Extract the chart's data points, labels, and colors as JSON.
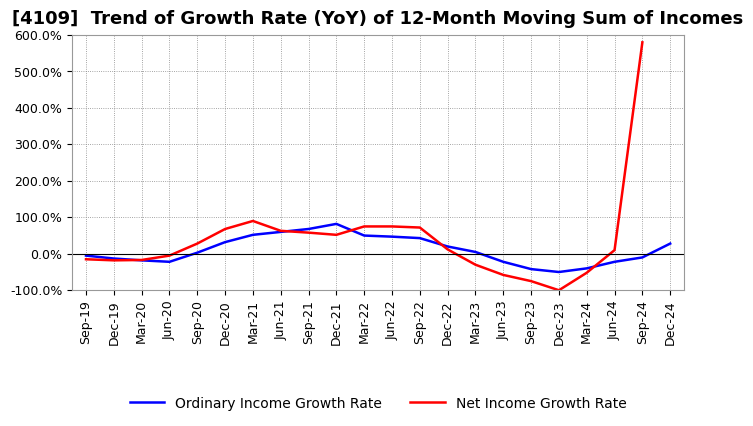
{
  "title": "[4109]  Trend of Growth Rate (YoY) of 12-Month Moving Sum of Incomes",
  "x_labels": [
    "Sep-19",
    "Dec-19",
    "Mar-20",
    "Jun-20",
    "Sep-20",
    "Dec-20",
    "Mar-21",
    "Jun-21",
    "Sep-21",
    "Dec-21",
    "Mar-22",
    "Jun-22",
    "Sep-22",
    "Dec-22",
    "Mar-23",
    "Jun-23",
    "Sep-23",
    "Dec-23",
    "Mar-24",
    "Jun-24",
    "Sep-24",
    "Dec-24"
  ],
  "ordinary_income": [
    -5,
    -13,
    -18,
    -22,
    3,
    32,
    52,
    60,
    68,
    82,
    50,
    47,
    43,
    20,
    5,
    -22,
    -42,
    -50,
    -40,
    -22,
    -10,
    28
  ],
  "net_income": [
    -15,
    -18,
    -17,
    -5,
    28,
    68,
    90,
    63,
    58,
    52,
    75,
    75,
    72,
    12,
    -30,
    -58,
    -75,
    -100,
    -52,
    10,
    580,
    null
  ],
  "ylim": [
    -100,
    600
  ],
  "yticks": [
    -100,
    0,
    100,
    200,
    300,
    400,
    500,
    600
  ],
  "ordinary_color": "#0000FF",
  "net_color": "#FF0000",
  "legend_ordinary": "Ordinary Income Growth Rate",
  "legend_net": "Net Income Growth Rate",
  "background_color": "#FFFFFF",
  "grid_color": "#AAAAAA",
  "title_fontsize": 13,
  "tick_fontsize": 9,
  "legend_fontsize": 10
}
